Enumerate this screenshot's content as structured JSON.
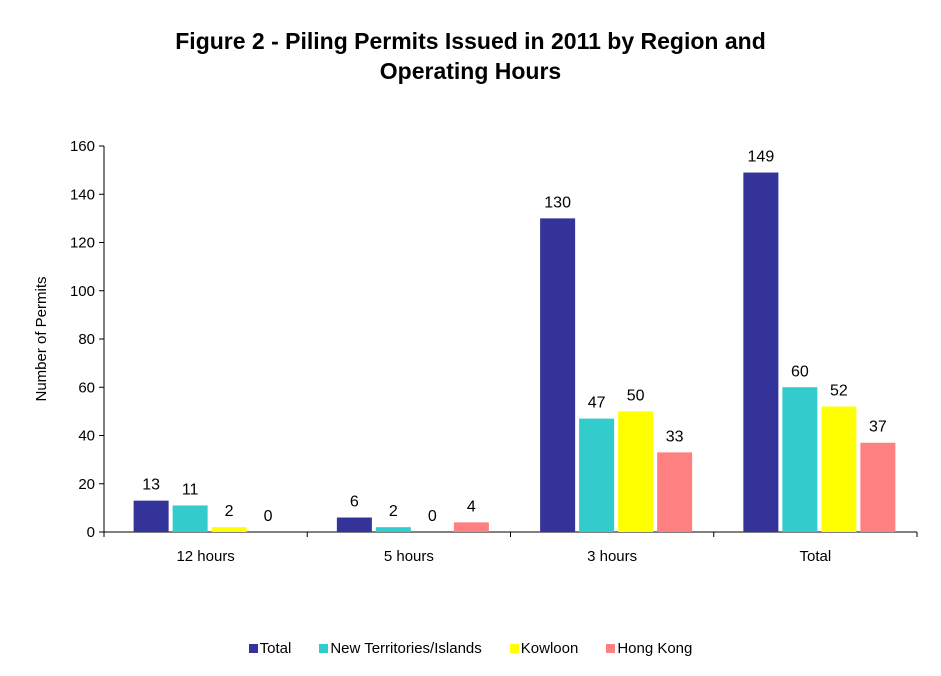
{
  "chart_data": {
    "type": "bar",
    "title": "Figure 2 - Piling Permits Issued in 2011 by Region and Operating Hours",
    "title_lines": [
      "Figure 2 - Piling Permits Issued in 2011 by Region and",
      "Operating Hours"
    ],
    "xlabel": "",
    "ylabel": "Number of Permits",
    "ylim": [
      0,
      160
    ],
    "yticks": [
      0,
      20,
      40,
      60,
      80,
      100,
      120,
      140,
      160
    ],
    "grid": false,
    "legend_position": "bottom",
    "categories": [
      "12 hours",
      "5 hours",
      "3 hours",
      "Total"
    ],
    "series": [
      {
        "name": "Total",
        "color": "#333399",
        "values": [
          13,
          6,
          130,
          149
        ]
      },
      {
        "name": "New Territories/Islands",
        "color": "#33CCCC",
        "values": [
          11,
          2,
          47,
          60
        ]
      },
      {
        "name": "Kowloon",
        "color": "#FFFF00",
        "values": [
          2,
          0,
          50,
          52
        ]
      },
      {
        "name": "Hong Kong",
        "color": "#FF8080",
        "values": [
          0,
          4,
          33,
          37
        ]
      }
    ],
    "data_labels": true
  }
}
